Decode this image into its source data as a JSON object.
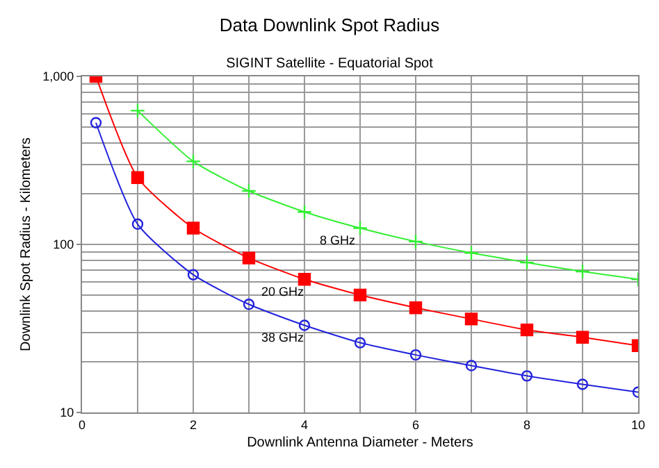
{
  "chart_data": {
    "type": "line",
    "title": "Data Downlink Spot Radius",
    "subtitle": "SIGINT Satellite - Equatorial Spot",
    "xlabel": "Downlink Antenna Diameter - Meters",
    "ylabel": "Downlink Spot Radius - Kilometers",
    "log": "y",
    "grid": true,
    "legend": false,
    "xlim": [
      0,
      10
    ],
    "xticks": [
      0,
      2,
      4,
      6,
      8,
      10
    ],
    "ylim": [
      10,
      1000
    ],
    "yticks": [
      10,
      100,
      {
        "value": 1000,
        "label": "1,000"
      }
    ],
    "series": [
      {
        "name": "8 GHz",
        "color": "#33ee33",
        "marker": "cross",
        "x": [
          1,
          2,
          3,
          4,
          5,
          6,
          7,
          8,
          9,
          10
        ],
        "values": [
          625,
          312,
          208,
          156,
          125,
          104,
          89,
          78,
          69,
          62
        ]
      },
      {
        "name": "20 GHz",
        "color": "#ff0000",
        "marker": "square",
        "x": [
          0.25,
          1,
          2,
          3,
          4,
          5,
          6,
          7,
          8,
          9,
          10
        ],
        "values": [
          1000,
          250,
          125,
          83,
          62,
          50,
          42,
          36,
          31,
          28,
          25
        ]
      },
      {
        "name": "38 GHz",
        "color": "#2222dd",
        "marker": "circle",
        "x": [
          0.25,
          1,
          2,
          3,
          4,
          5,
          6,
          7,
          8,
          9,
          10
        ],
        "values": [
          530,
          132,
          66,
          44,
          33,
          26,
          22,
          19,
          16.5,
          14.7,
          13.2
        ]
      }
    ]
  }
}
